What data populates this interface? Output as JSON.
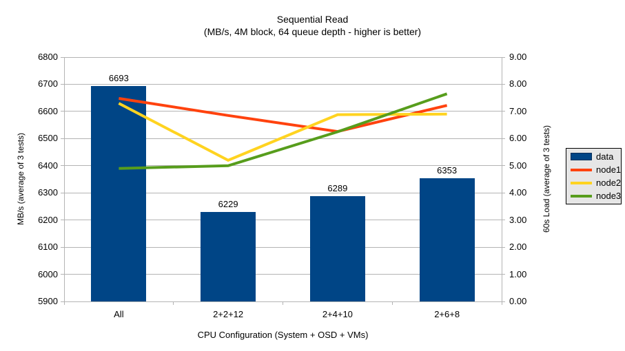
{
  "chart_data": {
    "type": "bar+line combo",
    "title": "Sequential Read",
    "subtitle": "(MB/s, 4M block, 64 queue depth - higher is better)",
    "categories": [
      "All",
      "2+2+12",
      "2+4+10",
      "2+6+8"
    ],
    "xlabel": "CPU Configuration (System + OSD + VMs)",
    "left_axis": {
      "label": "MB/s (average of 3 tests)",
      "min": 5900,
      "max": 6800,
      "step": 100
    },
    "right_axis": {
      "label": "60s Load (average of 3 tests)",
      "min": 0,
      "max": 9,
      "step": 1
    },
    "bar_series": {
      "name": "data",
      "color": "#004586",
      "axis": "left",
      "values": [
        6693,
        6229,
        6289,
        6353
      ]
    },
    "line_series": [
      {
        "name": "node1",
        "color": "#FF420E",
        "axis": "right",
        "values": [
          7.48,
          6.85,
          6.26,
          7.22
        ]
      },
      {
        "name": "node2",
        "color": "#FFD320",
        "axis": "right",
        "values": [
          7.3,
          5.2,
          6.88,
          6.9
        ]
      },
      {
        "name": "node3",
        "color": "#579D1C",
        "axis": "right",
        "values": [
          4.9,
          5.0,
          6.25,
          7.65
        ]
      }
    ],
    "legend": {
      "position": "right",
      "items": [
        "data",
        "node1",
        "node2",
        "node3"
      ]
    },
    "grid": true,
    "colors": {
      "grid": "#b3b3b3",
      "axis": "#b3b3b3",
      "text": "#000000",
      "legend_bg": "#e6e6e6",
      "background": "#ffffff"
    }
  }
}
